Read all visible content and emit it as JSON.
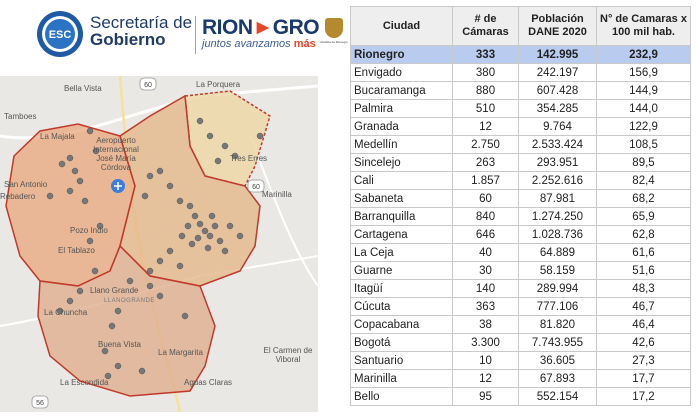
{
  "header": {
    "esc_badge": "ESC",
    "secretaria_line1": "Secretaría de",
    "secretaria_line2": "Gobierno",
    "rionegro_part1": "RION",
    "rionegro_part2": "GRO",
    "rionegro_slogan_main": "juntos avanzamos",
    "rionegro_slogan_accent": "más",
    "alcaldia_caption": "Alcaldía de Rionegro"
  },
  "map": {
    "places": [
      {
        "name": "Bella Vista"
      },
      {
        "name": "La Porquera"
      },
      {
        "name": "Tamboes"
      },
      {
        "name": "La Majala"
      },
      {
        "name": "Aeropuerto Internacional José María Córdova"
      },
      {
        "name": "Tres Erres"
      },
      {
        "name": "San Antonio"
      },
      {
        "name": "Rebadero"
      },
      {
        "name": "Marinilla"
      },
      {
        "name": "Pozo Indio"
      },
      {
        "name": "El Tablazo"
      },
      {
        "name": "Llano Grande"
      },
      {
        "name": "LLANOGRANDE"
      },
      {
        "name": "La Chuncha"
      },
      {
        "name": "Buena Vista"
      },
      {
        "name": "La Margarita"
      },
      {
        "name": "El Carmen de Viboral"
      },
      {
        "name": "La Escondida"
      },
      {
        "name": "Aguas Claras"
      }
    ],
    "road_badges": [
      "60",
      "60",
      "56"
    ],
    "colors": {
      "west": "#e8a77c",
      "central": "#e4b68a",
      "northeast": "#eed7a8",
      "south": "#dfae8e",
      "border": "#c0392b"
    }
  },
  "table": {
    "headers": [
      "Ciudad",
      "# de Cámaras",
      "Población DANE 2020",
      "N° de Camaras x 100 mil hab."
    ],
    "rows": [
      {
        "city": "Rionegro",
        "cams": "333",
        "pop": "142.995",
        "rate": "232,9"
      },
      {
        "city": "Envigado",
        "cams": "380",
        "pop": "242.197",
        "rate": "156,9"
      },
      {
        "city": "Bucaramanga",
        "cams": "880",
        "pop": "607.428",
        "rate": "144,9"
      },
      {
        "city": "Palmira",
        "cams": "510",
        "pop": "354.285",
        "rate": "144,0"
      },
      {
        "city": "Granada",
        "cams": "12",
        "pop": "9.764",
        "rate": "122,9"
      },
      {
        "city": "Medellín",
        "cams": "2.750",
        "pop": "2.533.424",
        "rate": "108,5"
      },
      {
        "city": "Sincelejo",
        "cams": "263",
        "pop": "293.951",
        "rate": "89,5"
      },
      {
        "city": "Cali",
        "cams": "1.857",
        "pop": "2.252.616",
        "rate": "82,4"
      },
      {
        "city": "Sabaneta",
        "cams": "60",
        "pop": "87.981",
        "rate": "68,2"
      },
      {
        "city": "Barranquilla",
        "cams": "840",
        "pop": "1.274.250",
        "rate": "65,9"
      },
      {
        "city": "Cartagena",
        "cams": "646",
        "pop": "1.028.736",
        "rate": "62,8"
      },
      {
        "city": "La Ceja",
        "cams": "40",
        "pop": "64.889",
        "rate": "61,6"
      },
      {
        "city": "Guarne",
        "cams": "30",
        "pop": "58.159",
        "rate": "51,6"
      },
      {
        "city": "Itagüí",
        "cams": "140",
        "pop": "289.994",
        "rate": "48,3"
      },
      {
        "city": "Cúcuta",
        "cams": "363",
        "pop": "777.106",
        "rate": "46,7"
      },
      {
        "city": "Copacabana",
        "cams": "38",
        "pop": "81.820",
        "rate": "46,4"
      },
      {
        "city": "Bogotá",
        "cams": "3.300",
        "pop": "7.743.955",
        "rate": "42,6"
      },
      {
        "city": "Santuario",
        "cams": "10",
        "pop": "36.605",
        "rate": "27,3"
      },
      {
        "city": "Marinilla",
        "cams": "12",
        "pop": "67.893",
        "rate": "17,7"
      },
      {
        "city": "Bello",
        "cams": "95",
        "pop": "552.154",
        "rate": "17,2"
      }
    ]
  }
}
